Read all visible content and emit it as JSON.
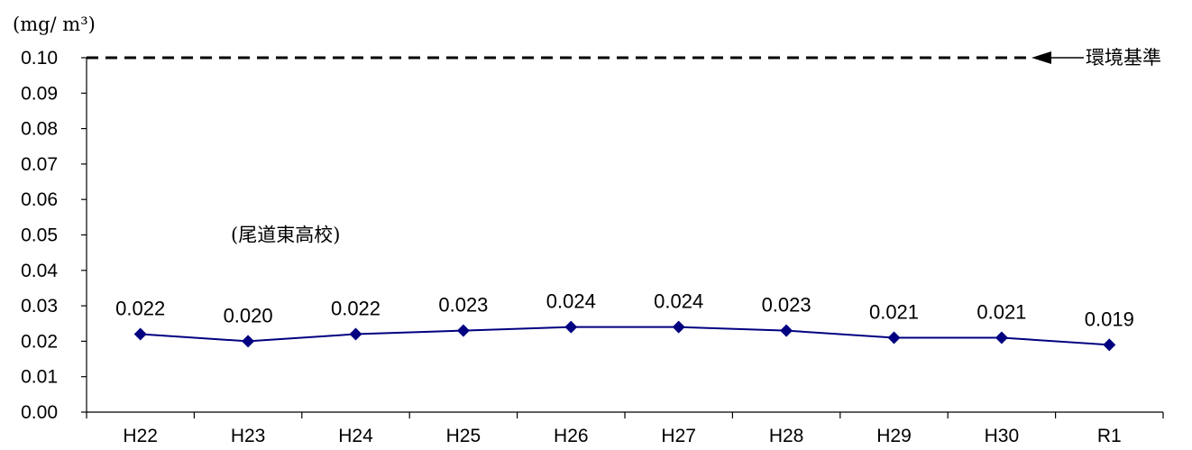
{
  "chart_data": {
    "type": "line",
    "unit_label": "(mg/ m³)",
    "station_label": "(尾道東高校)",
    "categories": [
      "H22",
      "H23",
      "H24",
      "H25",
      "H26",
      "H27",
      "H28",
      "H29",
      "H30",
      "R1"
    ],
    "series": [
      {
        "values": [
          0.022,
          0.02,
          0.022,
          0.023,
          0.024,
          0.024,
          0.023,
          0.021,
          0.021,
          0.019
        ],
        "data_labels": [
          "0.022",
          "0.020",
          "0.022",
          "0.023",
          "0.024",
          "0.024",
          "0.023",
          "0.021",
          "0.021",
          "0.019"
        ],
        "color": "#000080"
      }
    ],
    "y_ticks": [
      "0.00",
      "0.01",
      "0.02",
      "0.03",
      "0.04",
      "0.05",
      "0.06",
      "0.07",
      "0.08",
      "0.09",
      "0.10"
    ],
    "ylim": [
      0,
      0.1
    ],
    "reference_line": {
      "value": 0.1,
      "label": "環境基準",
      "style": "dashed",
      "color": "#000000"
    },
    "grid": false,
    "legend": "none"
  }
}
